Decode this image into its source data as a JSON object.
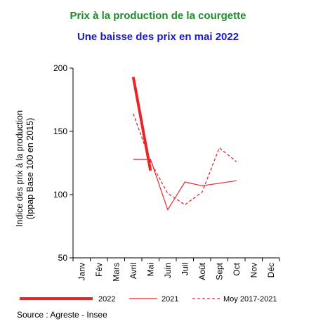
{
  "colors": {
    "title": "#1f8a2a",
    "subtitle": "#1b19c7",
    "series": "#e8262a"
  },
  "title": "Prix à la production de la courgette",
  "subtitle": "Une baisse des prix en mai 2022",
  "source": "Source : Agreste - Insee",
  "chart_data": {
    "type": "line",
    "x": [
      "Janv",
      "Fév",
      "Mars",
      "Avril",
      "Mai",
      "Juin",
      "Juil",
      "Août",
      "Sept",
      "Oct",
      "Nov",
      "Déc"
    ],
    "ylabel_lines": [
      "Indice des prix à la production",
      "(Ippap Base 100 en 2015)"
    ],
    "ylim": [
      50,
      200
    ],
    "yticks": [
      50,
      100,
      150,
      200
    ],
    "grid": false,
    "legend_position": "bottom",
    "series": [
      {
        "name": "2022",
        "style": "thick-solid",
        "values": [
          null,
          null,
          null,
          193,
          119,
          null,
          null,
          null,
          null,
          null,
          null,
          null
        ]
      },
      {
        "name": "2021",
        "style": "thin-solid",
        "values": [
          null,
          null,
          null,
          128,
          128,
          88,
          110,
          107,
          109,
          111,
          null,
          null
        ]
      },
      {
        "name": "Moy 2017-2021",
        "style": "dashed",
        "values": [
          null,
          null,
          null,
          164,
          126,
          101,
          92,
          102,
          137,
          126,
          null,
          null
        ]
      }
    ]
  }
}
